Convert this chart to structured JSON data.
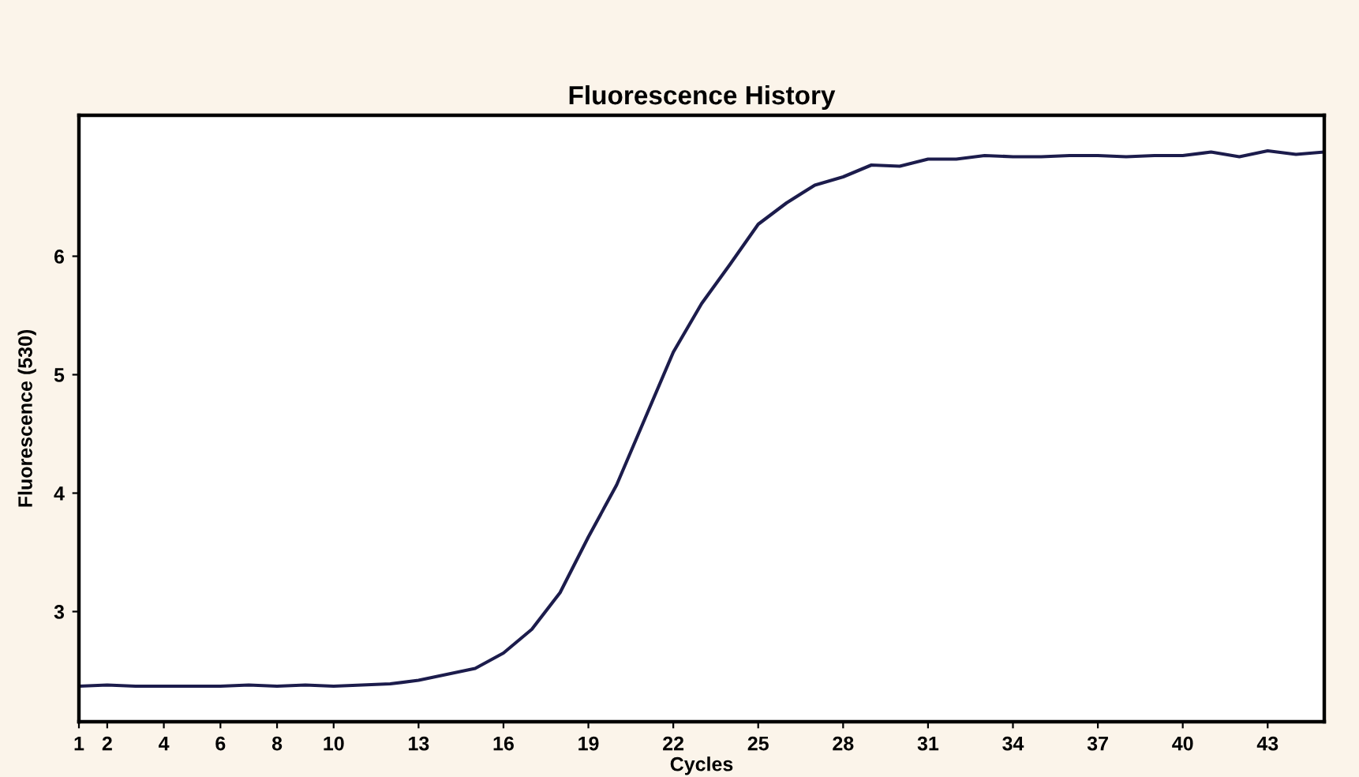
{
  "chart_data": {
    "type": "line",
    "title": "Fluorescence History",
    "xlabel": "Cycles",
    "ylabel": "Fluorescence (530)",
    "x": [
      1,
      2,
      3,
      4,
      5,
      6,
      7,
      8,
      9,
      10,
      11,
      12,
      13,
      14,
      15,
      16,
      17,
      18,
      19,
      20,
      21,
      22,
      23,
      24,
      25,
      26,
      27,
      28,
      29,
      30,
      31,
      32,
      33,
      34,
      35,
      36,
      37,
      38,
      39,
      40,
      41,
      42,
      43,
      44,
      45
    ],
    "series": [
      {
        "color": "#1c1c4c",
        "values": [
          2.37,
          2.38,
          2.37,
          2.37,
          2.37,
          2.37,
          2.38,
          2.37,
          2.38,
          2.37,
          2.38,
          2.39,
          2.42,
          2.47,
          2.52,
          2.65,
          2.85,
          3.16,
          3.63,
          4.07,
          4.63,
          5.19,
          5.6,
          5.93,
          6.27,
          6.45,
          6.6,
          6.67,
          6.77,
          6.76,
          6.82,
          6.82,
          6.85,
          6.84,
          6.84,
          6.85,
          6.85,
          6.84,
          6.85,
          6.85,
          6.88,
          6.84,
          6.89,
          6.86,
          6.88
        ]
      }
    ],
    "xlim": [
      1,
      45
    ],
    "xticks": [
      1,
      2,
      4,
      6,
      8,
      10,
      13,
      16,
      19,
      22,
      25,
      28,
      31,
      34,
      37,
      40,
      43
    ],
    "ylim": [
      2.07,
      7.19
    ],
    "yticks": [
      3,
      4,
      5,
      6
    ],
    "grid": false,
    "legend": false,
    "marker": "none",
    "line_style": "solid"
  }
}
